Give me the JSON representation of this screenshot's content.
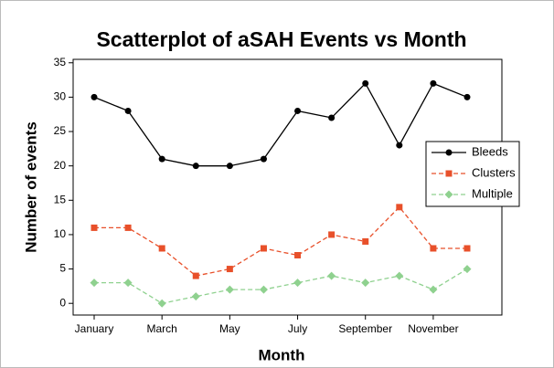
{
  "chart_data": {
    "type": "line",
    "title": "Scatterplot of aSAH Events vs Month",
    "x_label": "Month",
    "y_label": "Number of events",
    "categories": [
      "January",
      null,
      "March",
      null,
      "May",
      null,
      "July",
      null,
      "September",
      null,
      "November",
      null
    ],
    "series": [
      {
        "name": "Bleeds",
        "color": "#000000",
        "marker": "circle",
        "dash": "solid",
        "values": [
          30,
          28,
          21,
          20,
          20,
          21,
          28,
          27,
          32,
          23,
          32,
          30
        ]
      },
      {
        "name": "Clusters",
        "color": "#e8502a",
        "marker": "square",
        "dash": "dashed",
        "values": [
          11,
          11,
          8,
          4,
          5,
          8,
          7,
          10,
          9,
          14,
          8,
          8
        ]
      },
      {
        "name": "Multiple",
        "color": "#8fd18f",
        "marker": "diamond",
        "dash": "dashed",
        "values": [
          3,
          3,
          0,
          1,
          2,
          2,
          3,
          4,
          3,
          4,
          2,
          5
        ]
      }
    ],
    "ylim": [
      -1.7,
      35.5
    ],
    "yticks": [
      0,
      5,
      10,
      15,
      20,
      25,
      30,
      35
    ],
    "legend": "right"
  }
}
